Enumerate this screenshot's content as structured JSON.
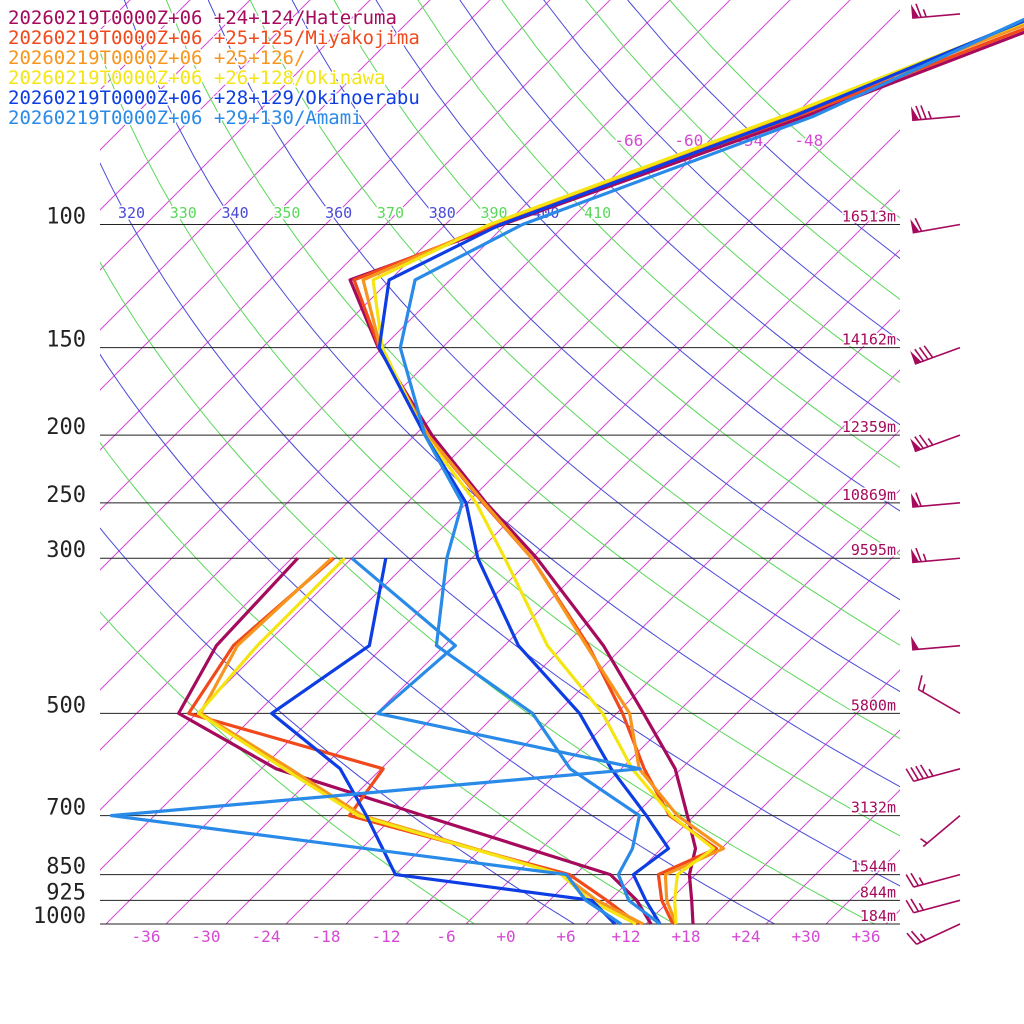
{
  "legend": [
    {
      "label": "20260219T0000Z+06 +24+124/Hateruma",
      "color": "#a50a5c"
    },
    {
      "label": "20260219T0000Z+06 +25+125/Miyakojima",
      "color": "#f04a1c"
    },
    {
      "label": "20260219T0000Z+06 +25+126/",
      "color": "#f7961e"
    },
    {
      "label": "20260219T0000Z+06 +26+128/Okinawa",
      "color": "#f4e513"
    },
    {
      "label": "20260219T0000Z+06 +28+129/Okinoerabu",
      "color": "#0d3de3"
    },
    {
      "label": "20260219T0000Z+06 +29+130/Amami",
      "color": "#2a8ae8"
    }
  ],
  "chart_data": {
    "type": "line",
    "diagram": "skew-t",
    "x_unit": "temperature (°C)",
    "y_unit": "pressure (hPa)",
    "pressure_levels": [
      {
        "label": "100",
        "p": 100,
        "height": "16513m"
      },
      {
        "label": "150",
        "p": 150,
        "height": "14162m"
      },
      {
        "label": "200",
        "p": 200,
        "height": "12359m"
      },
      {
        "label": "250",
        "p": 250,
        "height": "10869m"
      },
      {
        "label": "300",
        "p": 300,
        "height": "9595m"
      },
      {
        "label": "500",
        "p": 500,
        "height": "5800m"
      },
      {
        "label": "700",
        "p": 700,
        "height": "3132m"
      },
      {
        "label": "850",
        "p": 850,
        "height": "1544m"
      },
      {
        "label": "925",
        "p": 925,
        "height": "844m"
      },
      {
        "label": "1000",
        "p": 1000,
        "height": "184m"
      }
    ],
    "temp_ticks": [
      "-36",
      "-30",
      "-24",
      "-18",
      "-12",
      "-6",
      "+0",
      "+6",
      "+12",
      "+18",
      "+24",
      "+30",
      "+36"
    ],
    "temp_tick_values": [
      -36,
      -30,
      -24,
      -18,
      -12,
      -6,
      0,
      6,
      12,
      18,
      24,
      30,
      36
    ],
    "upper_ticks": [
      {
        "label": "-66",
        "t": -66
      },
      {
        "label": "-60",
        "t": -60
      },
      {
        "label": "-54",
        "t": -54
      },
      {
        "label": "-48",
        "t": -48
      }
    ],
    "theta_labels": [
      {
        "label": "320",
        "value": 320,
        "color": "#4a4ad8"
      },
      {
        "label": "330",
        "value": 330,
        "color": "#5ad85a"
      },
      {
        "label": "340",
        "value": 340,
        "color": "#4a4ad8"
      },
      {
        "label": "350",
        "value": 350,
        "color": "#5ad85a"
      },
      {
        "label": "360",
        "value": 360,
        "color": "#4a4ad8"
      },
      {
        "label": "370",
        "value": 370,
        "color": "#5ad85a"
      },
      {
        "label": "380",
        "value": 380,
        "color": "#4a4ad8"
      },
      {
        "label": "390",
        "value": 390,
        "color": "#5ad85a"
      },
      {
        "label": "400",
        "value": 400,
        "color": "#4a4ad8"
      },
      {
        "label": "410",
        "value": 410,
        "color": "#5ad85a"
      }
    ],
    "series": [
      {
        "name": "20260219T0000Z+06 +24+124/Hateruma",
        "color": "#a50a5c",
        "temp": [
          [
            50,
            -34.4
          ],
          [
            70,
            -50.8
          ],
          [
            100,
            -70.3
          ],
          [
            120,
            -80.0
          ],
          [
            150,
            -70.4
          ],
          [
            200,
            -56.3
          ],
          [
            250,
            -44.1
          ],
          [
            300,
            -33.5
          ],
          [
            400,
            -18.1
          ],
          [
            500,
            -7.3
          ],
          [
            600,
            1.4
          ],
          [
            700,
            7.3
          ],
          [
            780,
            11.4
          ],
          [
            850,
            13.4
          ],
          [
            925,
            16.2
          ],
          [
            1000,
            18.7
          ]
        ],
        "dew": [
          [
            300,
            -57.4
          ],
          [
            400,
            -56.8
          ],
          [
            500,
            -53.8
          ],
          [
            600,
            -38.5
          ],
          [
            700,
            -19.1
          ],
          [
            850,
            5.5
          ],
          [
            925,
            10.7
          ],
          [
            1000,
            14.5
          ]
        ]
      },
      {
        "name": "20260219T0000Z+06 +25+125/Miyakojima",
        "color": "#f04a1c",
        "temp": [
          [
            50,
            -35.3
          ],
          [
            70,
            -51.7
          ],
          [
            100,
            -71.0
          ],
          [
            120,
            -79.6
          ],
          [
            150,
            -70.3
          ],
          [
            200,
            -56.7
          ],
          [
            250,
            -44.4
          ],
          [
            300,
            -34.0
          ],
          [
            400,
            -19.6
          ],
          [
            500,
            -9.4
          ],
          [
            600,
            -1.7
          ],
          [
            700,
            5.5
          ],
          [
            780,
            13.5
          ],
          [
            850,
            10.3
          ],
          [
            925,
            13.2
          ],
          [
            1000,
            16.7
          ]
        ],
        "dew": [
          [
            300,
            -53.8
          ],
          [
            400,
            -55.1
          ],
          [
            500,
            -52.8
          ],
          [
            600,
            -27.8
          ],
          [
            700,
            -26.5
          ],
          [
            850,
            1.4
          ],
          [
            925,
            7.7
          ],
          [
            1000,
            13.2
          ]
        ]
      },
      {
        "name": "20260219T0000Z+06 +25+126/",
        "color": "#f7961e",
        "temp": [
          [
            50,
            -36.3
          ],
          [
            70,
            -52.6
          ],
          [
            100,
            -71.5
          ],
          [
            120,
            -78.7
          ],
          [
            150,
            -70.2
          ],
          [
            200,
            -56.7
          ],
          [
            250,
            -44.3
          ],
          [
            300,
            -34.0
          ],
          [
            400,
            -19.8
          ],
          [
            500,
            -8.7
          ],
          [
            600,
            -2.2
          ],
          [
            700,
            6.3
          ],
          [
            780,
            14.2
          ],
          [
            850,
            11.0
          ],
          [
            925,
            13.7
          ],
          [
            1000,
            17.0
          ]
        ],
        "dew": [
          [
            300,
            -54.0
          ],
          [
            400,
            -54.7
          ],
          [
            500,
            -51.6
          ],
          [
            600,
            -37.1
          ],
          [
            700,
            -25.2
          ],
          [
            850,
            0.7
          ],
          [
            925,
            6.7
          ],
          [
            1000,
            13.7
          ]
        ]
      },
      {
        "name": "20260219T0000Z+06 +26+128/Okinawa",
        "color": "#f4e513",
        "temp": [
          [
            50,
            -37.1
          ],
          [
            70,
            -53.1
          ],
          [
            100,
            -71.6
          ],
          [
            120,
            -77.7
          ],
          [
            150,
            -70.0
          ],
          [
            200,
            -57.0
          ],
          [
            250,
            -45.1
          ],
          [
            300,
            -36.7
          ],
          [
            400,
            -23.7
          ],
          [
            500,
            -11.4
          ],
          [
            600,
            -2.9
          ],
          [
            700,
            5.7
          ],
          [
            780,
            13.2
          ],
          [
            850,
            12.2
          ],
          [
            925,
            14.5
          ],
          [
            1000,
            17.0
          ]
        ],
        "dew": [
          [
            300,
            -52.7
          ],
          [
            400,
            -52.7
          ],
          [
            500,
            -51.8
          ],
          [
            600,
            -37.7
          ],
          [
            700,
            -25.6
          ],
          [
            850,
            0.6
          ],
          [
            925,
            6.0
          ],
          [
            1000,
            13.0
          ]
        ]
      },
      {
        "name": "20260219T0000Z+06 +28+129/Okinoerabu",
        "color": "#0d3de3",
        "temp": [
          [
            50,
            -37.5
          ],
          [
            70,
            -52.0
          ],
          [
            100,
            -70.5
          ],
          [
            120,
            -76.1
          ],
          [
            150,
            -70.3
          ],
          [
            200,
            -57.0
          ],
          [
            250,
            -46.1
          ],
          [
            300,
            -39.4
          ],
          [
            400,
            -26.6
          ],
          [
            500,
            -13.7
          ],
          [
            600,
            -5.0
          ],
          [
            700,
            3.2
          ],
          [
            780,
            8.7
          ],
          [
            850,
            7.8
          ],
          [
            925,
            11.6
          ],
          [
            1000,
            15.4
          ]
        ],
        "dew": [
          [
            300,
            -48.6
          ],
          [
            400,
            -41.5
          ],
          [
            500,
            -44.5
          ],
          [
            600,
            -32.1
          ],
          [
            700,
            -24.8
          ],
          [
            850,
            -16.0
          ],
          [
            925,
            6.2
          ],
          [
            1000,
            10.9
          ]
        ]
      },
      {
        "name": "20260219T0000Z+06 +29+130/Amami",
        "color": "#2a8ae8",
        "temp": [
          [
            50,
            -38.0
          ],
          [
            70,
            -50.0
          ],
          [
            100,
            -68.3
          ],
          [
            120,
            -73.5
          ],
          [
            150,
            -68.2
          ],
          [
            200,
            -57.0
          ],
          [
            250,
            -46.5
          ],
          [
            300,
            -42.5
          ],
          [
            400,
            -34.8
          ],
          [
            500,
            -18.4
          ],
          [
            600,
            -9.1
          ],
          [
            700,
            2.5
          ],
          [
            780,
            5.1
          ],
          [
            850,
            6.3
          ],
          [
            925,
            9.9
          ],
          [
            1000,
            15.4
          ]
        ],
        "dew": [
          [
            300,
            -52.0
          ],
          [
            400,
            -32.9
          ],
          [
            500,
            -33.9
          ],
          [
            600,
            -2.1
          ],
          [
            700,
            -50.3
          ],
          [
            850,
            1.1
          ],
          [
            925,
            5.6
          ],
          [
            1000,
            11.5
          ]
        ]
      }
    ],
    "wind_barbs": [
      {
        "p": 50,
        "dir": 265,
        "kt": 65
      },
      {
        "p": 70,
        "dir": 265,
        "kt": 75
      },
      {
        "p": 100,
        "dir": 260,
        "kt": 60
      },
      {
        "p": 150,
        "dir": 250,
        "kt": 80
      },
      {
        "p": 200,
        "dir": 250,
        "kt": 75
      },
      {
        "p": 250,
        "dir": 265,
        "kt": 60
      },
      {
        "p": 300,
        "dir": 265,
        "kt": 65
      },
      {
        "p": 400,
        "dir": 265,
        "kt": 50
      },
      {
        "p": 500,
        "dir": 300,
        "kt": 15
      },
      {
        "p": 600,
        "dir": 255,
        "kt": 45
      },
      {
        "p": 700,
        "dir": 230,
        "kt": 5
      },
      {
        "p": 850,
        "dir": 255,
        "kt": 25
      },
      {
        "p": 925,
        "dir": 255,
        "kt": 25
      },
      {
        "p": 1000,
        "dir": 245,
        "kt": 25
      }
    ],
    "isotherm_color": "#d44ad4",
    "grid": true
  }
}
